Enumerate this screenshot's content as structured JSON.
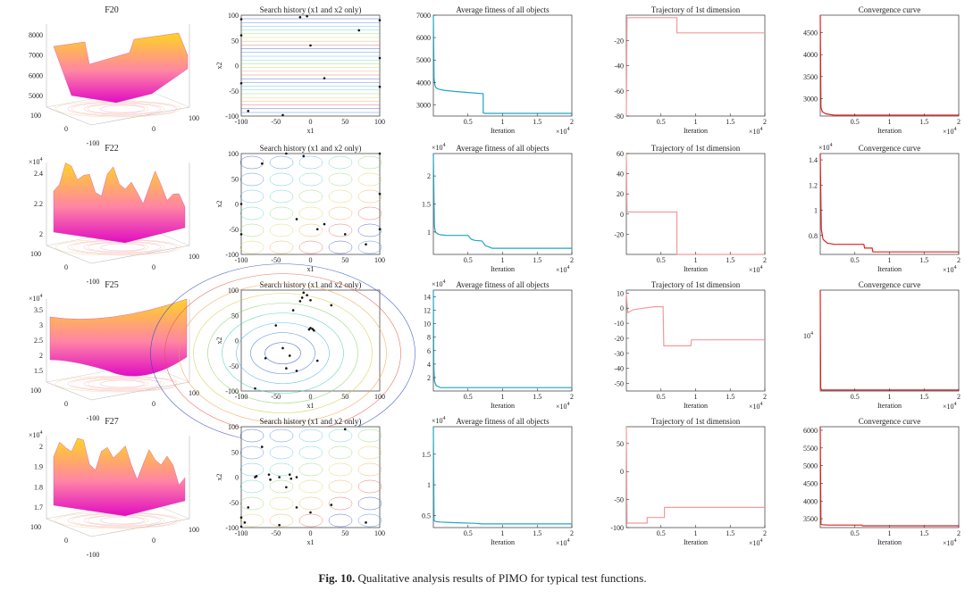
{
  "caption": {
    "label": "Fig. 10.",
    "text": "Qualitative analysis results of PIMO for typical test functions."
  },
  "common": {
    "search_title": "Search history (x1 and x2 only)",
    "fitness_title": "Average fitness of all objects",
    "traj_title": "Trajectory of 1st dimension",
    "conv_title": "Convergence curve",
    "xlabel_iter": "Iteration",
    "x1": "x1",
    "x2": "x2",
    "exp4": "4"
  },
  "colors": {
    "fitness": "#1fa6c4",
    "trajectory": "#f29a9a",
    "convergence": "#e02020",
    "axis": "#333333"
  },
  "chart_data": [
    {
      "type": "surface",
      "title": "F20",
      "z_ticks": [
        "8000",
        "7000",
        "6000",
        "5000"
      ],
      "z_exp": "",
      "x_ticks": [
        "100",
        "0",
        "-100"
      ],
      "y_ticks": [
        "0",
        "100"
      ],
      "surface_style": "ridges"
    },
    {
      "type": "surface",
      "title": "F22",
      "z_ticks": [
        "2.4",
        "2.2",
        "2"
      ],
      "z_exp": "4",
      "x_ticks": [
        "100",
        "0",
        "-100"
      ],
      "y_ticks": [
        "0",
        "100"
      ],
      "surface_style": "rough"
    },
    {
      "type": "surface",
      "title": "F25",
      "z_ticks": [
        "3.5",
        "3",
        "2.5",
        "2",
        "1.5"
      ],
      "z_exp": "4",
      "x_ticks": [
        "100",
        "0",
        "-100"
      ],
      "y_ticks": [
        "0",
        "100"
      ],
      "surface_style": "bowl"
    },
    {
      "type": "surface",
      "title": "F27",
      "z_ticks": [
        "2",
        "1.9",
        "1.8",
        "1.7"
      ],
      "z_exp": "4",
      "x_ticks": [
        "100",
        "0",
        "-100"
      ],
      "y_ticks": [
        "0",
        "100"
      ],
      "surface_style": "rough"
    },
    {
      "type": "contour",
      "title": "Search history (x1 and x2 only)",
      "row": 0,
      "xlim": [
        -100,
        100
      ],
      "ylim": [
        -100,
        100
      ],
      "ticks": [
        "-100",
        "-50",
        "0",
        "50",
        "100"
      ],
      "pattern": "horizontal",
      "points": [
        [
          -5,
          98
        ],
        [
          -15,
          96
        ],
        [
          -100,
          92
        ],
        [
          100,
          90
        ],
        [
          100,
          -42
        ],
        [
          -100,
          -35
        ],
        [
          -40,
          -98
        ],
        [
          -90,
          -90
        ],
        [
          20,
          -25
        ],
        [
          100,
          15
        ],
        [
          -100,
          60
        ],
        [
          0,
          40
        ],
        [
          70,
          70
        ]
      ]
    },
    {
      "type": "contour",
      "title": "Search history (x1 and x2 only)",
      "row": 1,
      "xlim": [
        -100,
        100
      ],
      "ylim": [
        -100,
        100
      ],
      "ticks": [
        "-100",
        "-50",
        "0",
        "50",
        "100"
      ],
      "pattern": "grid",
      "points": [
        [
          -35,
          100
        ],
        [
          -10,
          95
        ],
        [
          100,
          100
        ],
        [
          100,
          20
        ],
        [
          100,
          -50
        ],
        [
          20,
          -40
        ],
        [
          10,
          -50
        ],
        [
          -20,
          -30
        ],
        [
          -100,
          0
        ],
        [
          -100,
          -60
        ],
        [
          50,
          -60
        ],
        [
          -70,
          80
        ],
        [
          80,
          -80
        ]
      ]
    },
    {
      "type": "contour",
      "title": "Search history (x1 and x2 only)",
      "row": 2,
      "xlim": [
        -100,
        100
      ],
      "ylim": [
        -100,
        100
      ],
      "ticks": [
        "-100",
        "-50",
        "0",
        "50",
        "100"
      ],
      "pattern": "ellipse",
      "points": [
        [
          -10,
          95
        ],
        [
          -5,
          90
        ],
        [
          -12,
          85
        ],
        [
          0,
          80
        ],
        [
          -15,
          78
        ],
        [
          0,
          25
        ],
        [
          3,
          23
        ],
        [
          5,
          20
        ],
        [
          -2,
          22
        ],
        [
          -50,
          30
        ],
        [
          -40,
          -15
        ],
        [
          -30,
          -30
        ],
        [
          10,
          -40
        ],
        [
          -65,
          -35
        ],
        [
          -80,
          -95
        ],
        [
          -35,
          -55
        ],
        [
          -20,
          -60
        ],
        [
          30,
          70
        ],
        [
          -25,
          60
        ]
      ]
    },
    {
      "type": "contour",
      "title": "Search history (x1 and x2 only)",
      "row": 3,
      "xlim": [
        -100,
        100
      ],
      "ylim": [
        -100,
        100
      ],
      "ticks": [
        "-100",
        "-50",
        "0",
        "50",
        "100"
      ],
      "pattern": "grid",
      "points": [
        [
          -80,
          0
        ],
        [
          -78,
          2
        ],
        [
          -60,
          5
        ],
        [
          -58,
          -5
        ],
        [
          -30,
          5
        ],
        [
          -28,
          -3
        ],
        [
          -45,
          0
        ],
        [
          -20,
          0
        ],
        [
          -35,
          -20
        ],
        [
          -100,
          -98
        ],
        [
          -95,
          -90
        ],
        [
          -100,
          -80
        ],
        [
          -45,
          -95
        ],
        [
          0,
          -70
        ],
        [
          -20,
          -60
        ],
        [
          30,
          -55
        ],
        [
          80,
          -90
        ],
        [
          -70,
          60
        ],
        [
          50,
          95
        ],
        [
          -90,
          -60
        ]
      ]
    },
    {
      "type": "line",
      "title": "Average fitness of all objects",
      "row": 0,
      "xlim": [
        0,
        20000
      ],
      "ylim": [
        2500,
        7000
      ],
      "xticks": [
        "0.5",
        "1",
        "1.5",
        "2"
      ],
      "x_exp": "4",
      "yticks": [
        "3000",
        "4000",
        "5000",
        "6000",
        "7000"
      ],
      "y_exp": "",
      "x": [
        0,
        100,
        200,
        400,
        800,
        1500,
        3000,
        5000,
        7200,
        7200,
        7400,
        20000
      ],
      "y": [
        7000,
        4200,
        3900,
        3750,
        3700,
        3650,
        3600,
        3550,
        3500,
        2650,
        2620,
        2620
      ]
    },
    {
      "type": "line",
      "title": "Average fitness of all objects",
      "row": 1,
      "xlim": [
        0,
        20000
      ],
      "ylim": [
        0.6,
        2.4
      ],
      "xticks": [
        "0.5",
        "1",
        "1.5",
        "2"
      ],
      "x_exp": "4",
      "yticks": [
        "1",
        "1.5",
        "2"
      ],
      "y_exp": "4",
      "x": [
        0,
        150,
        300,
        600,
        1000,
        2000,
        5000,
        5500,
        6000,
        7000,
        7500,
        8500,
        20000
      ],
      "y": [
        2.4,
        1.1,
        1.0,
        0.97,
        0.95,
        0.94,
        0.94,
        0.87,
        0.85,
        0.84,
        0.76,
        0.71,
        0.71
      ]
    },
    {
      "type": "line",
      "title": "Average fitness of all objects",
      "row": 2,
      "xlim": [
        0,
        20000
      ],
      "ylim": [
        0,
        15
      ],
      "xticks": [
        "0.5",
        "1",
        "1.5",
        "2"
      ],
      "x_exp": "4",
      "yticks": [
        "2",
        "4",
        "6",
        "8",
        "10",
        "12",
        "14"
      ],
      "y_exp": "4",
      "x": [
        0,
        60,
        150,
        400,
        1000,
        20000
      ],
      "y": [
        15,
        4,
        1.5,
        0.8,
        0.5,
        0.5
      ]
    },
    {
      "type": "line",
      "title": "Average fitness of all objects",
      "row": 3,
      "xlim": [
        0,
        20000
      ],
      "ylim": [
        0.3,
        1.95
      ],
      "xticks": [
        "0.5",
        "1",
        "1.5",
        "2"
      ],
      "x_exp": "4",
      "yticks": [
        "0.5",
        "1",
        "1.5"
      ],
      "y_exp": "4",
      "x": [
        0,
        100,
        300,
        1000,
        3000,
        6000,
        7000,
        20000
      ],
      "y": [
        1.95,
        0.42,
        0.4,
        0.39,
        0.38,
        0.37,
        0.36,
        0.36
      ]
    },
    {
      "type": "line",
      "title": "Trajectory of 1st dimension",
      "row": 0,
      "xlim": [
        0,
        20000
      ],
      "ylim": [
        -80,
        0
      ],
      "xticks": [
        "0.5",
        "1",
        "1.5",
        "2"
      ],
      "x_exp": "4",
      "yticks": [
        "-80",
        "-60",
        "-40",
        "-20"
      ],
      "y_exp": "",
      "x": [
        0,
        100,
        7300,
        7300,
        20000
      ],
      "y": [
        -80,
        -2,
        -2,
        -14,
        -14
      ]
    },
    {
      "type": "line",
      "title": "Trajectory of 1st dimension",
      "row": 1,
      "xlim": [
        0,
        20000
      ],
      "ylim": [
        -40,
        60
      ],
      "xticks": [
        "0.5",
        "1",
        "1.5",
        "2"
      ],
      "x_exp": "4",
      "yticks": [
        "-20",
        "0",
        "20",
        "40",
        "60"
      ],
      "y_exp": "",
      "x": [
        0,
        100,
        7300,
        7300,
        20000
      ],
      "y": [
        60,
        2,
        2,
        -40,
        -40
      ]
    },
    {
      "type": "line",
      "title": "Trajectory of 1st dimension",
      "row": 2,
      "xlim": [
        0,
        20000
      ],
      "ylim": [
        -55,
        12
      ],
      "xticks": [
        "0.5",
        "1",
        "1.5",
        "2"
      ],
      "x_exp": "4",
      "yticks": [
        "-50",
        "-40",
        "-30",
        "-20",
        "-10",
        "0",
        "10"
      ],
      "y_exp": "",
      "x": [
        0,
        200,
        1000,
        2500,
        4000,
        5300,
        5400,
        9300,
        9400,
        20000
      ],
      "y": [
        10,
        -3,
        -1,
        0,
        1,
        1,
        -25,
        -25,
        -21,
        -21
      ]
    },
    {
      "type": "line",
      "title": "Trajectory of 1st dimension",
      "row": 3,
      "xlim": [
        0,
        20000
      ],
      "ylim": [
        -100,
        80
      ],
      "xticks": [
        "0.5",
        "1",
        "1.5",
        "2"
      ],
      "x_exp": "4",
      "yticks": [
        "-100",
        "-50",
        "0",
        "50"
      ],
      "y_exp": "",
      "x": [
        0,
        100,
        3000,
        3000,
        5500,
        5500,
        20000
      ],
      "y": [
        80,
        -92,
        -92,
        -82,
        -82,
        -64,
        -64
      ]
    },
    {
      "type": "line",
      "title": "Convergence curve",
      "row": 0,
      "xlim": [
        0,
        20000
      ],
      "ylim": [
        2600,
        4900
      ],
      "xticks": [
        "0.5",
        "1",
        "1.5",
        "2"
      ],
      "x_exp": "4",
      "yticks": [
        "3000",
        "3500",
        "4000",
        "4500"
      ],
      "y_exp": "",
      "x": [
        0,
        100,
        300,
        800,
        2000,
        20000
      ],
      "y": [
        4900,
        2800,
        2700,
        2650,
        2620,
        2620
      ]
    },
    {
      "type": "line",
      "title": "Convergence curve",
      "row": 1,
      "xlim": [
        0,
        20000
      ],
      "ylim": [
        0.65,
        1.45
      ],
      "xticks": [
        "0.5",
        "1",
        "1.5",
        "2"
      ],
      "x_exp": "4",
      "yticks": [
        "0.8",
        "1",
        "1.2",
        "1.4"
      ],
      "y_exp": "4",
      "x": [
        0,
        150,
        400,
        1000,
        2000,
        6300,
        6400,
        7500,
        7600,
        20000
      ],
      "y": [
        1.45,
        0.85,
        0.77,
        0.74,
        0.73,
        0.73,
        0.7,
        0.7,
        0.67,
        0.67
      ]
    },
    {
      "type": "line",
      "title": "Convergence curve",
      "row": 2,
      "xlim": [
        0,
        20000
      ],
      "ylim": [
        0,
        1
      ],
      "xticks": [
        "0.5",
        "1",
        "1.5",
        "2"
      ],
      "x_exp": "4",
      "yticks": [
        "10^4"
      ],
      "y_exp": "",
      "ylabel_pos": [
        0.55
      ],
      "x": [
        0,
        60,
        200,
        20000
      ],
      "y": [
        1,
        0.03,
        0.01,
        0.01
      ]
    },
    {
      "type": "line",
      "title": "Convergence curve",
      "row": 3,
      "xlim": [
        0,
        20000
      ],
      "ylim": [
        3250,
        6100
      ],
      "xticks": [
        "0.5",
        "1",
        "1.5",
        "2"
      ],
      "x_exp": "4",
      "yticks": [
        "3500",
        "4000",
        "4500",
        "5000",
        "5500",
        "6000"
      ],
      "y_exp": "",
      "x": [
        0,
        100,
        300,
        1000,
        6000,
        6100,
        20000
      ],
      "y": [
        6100,
        3340,
        3330,
        3320,
        3320,
        3300,
        3300
      ]
    }
  ]
}
